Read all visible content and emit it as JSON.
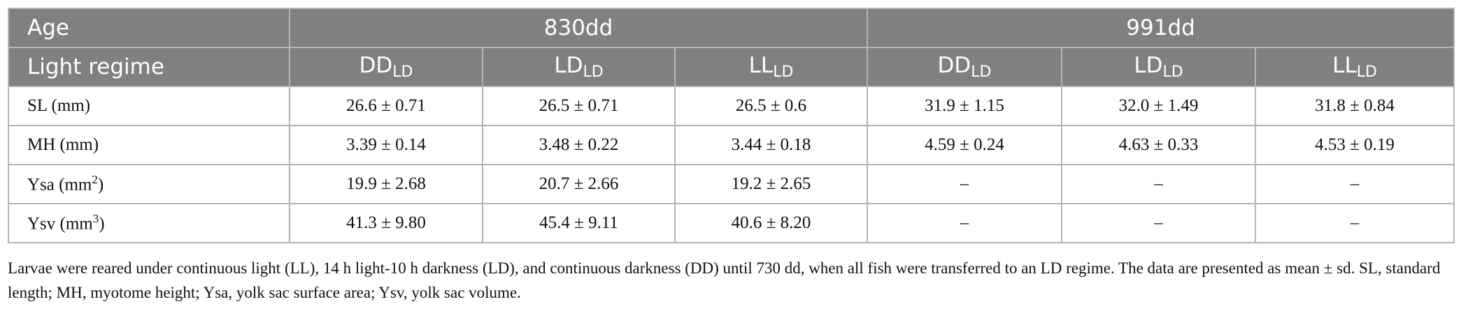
{
  "table": {
    "header": {
      "age_label": "Age",
      "groups": [
        "830dd",
        "991dd"
      ],
      "regime_label": "Light regime",
      "regimes": [
        {
          "main": "DD",
          "sub": "LD"
        },
        {
          "main": "LD",
          "sub": "LD"
        },
        {
          "main": "LL",
          "sub": "LD"
        },
        {
          "main": "DD",
          "sub": "LD"
        },
        {
          "main": "LD",
          "sub": "LD"
        },
        {
          "main": "LL",
          "sub": "LD"
        }
      ]
    },
    "rows": [
      {
        "label": {
          "text": "SL (mm)"
        },
        "cells": [
          "26.6 ± 0.71",
          "26.5 ± 0.71",
          "26.5 ± 0.6",
          "31.9 ± 1.15",
          "32.0 ± 1.49",
          "31.8 ± 0.84"
        ]
      },
      {
        "label": {
          "text": "MH (mm)"
        },
        "cells": [
          "3.39 ± 0.14",
          "3.48 ± 0.22",
          "3.44 ± 0.18",
          "4.59 ± 0.24",
          "4.63 ± 0.33",
          "4.53 ± 0.19"
        ]
      },
      {
        "label": {
          "text": "Ysa (mm",
          "sup": "2",
          "after": ")"
        },
        "cells": [
          "19.9 ± 2.68",
          "20.7 ± 2.66",
          "19.2 ± 2.65",
          "–",
          "–",
          "–"
        ]
      },
      {
        "label": {
          "text": "Ysv (mm",
          "sup": "3",
          "after": ")"
        },
        "cells": [
          "41.3 ± 9.80",
          "45.4 ± 9.11",
          "40.6 ± 8.20",
          "–",
          "–",
          "–"
        ]
      }
    ],
    "footnote": "Larvae were reared under continuous light (LL), 14 h light-10 h darkness (LD), and continuous darkness (DD) until 730 dd, when all fish were transferred to an LD regime. The data are presented as mean ± sd. SL, standard length; MH, myotome height; Ysa, yolk sac surface area; Ysv, yolk sac volume."
  }
}
